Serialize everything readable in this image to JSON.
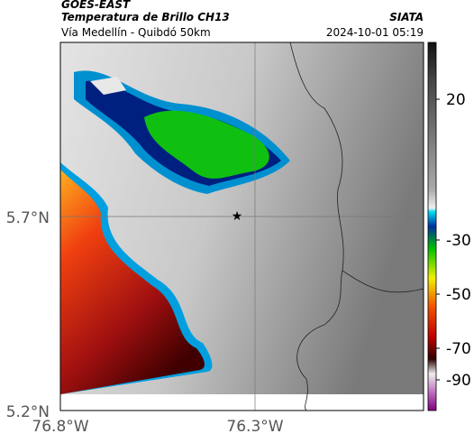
{
  "header": {
    "source": "GOES-EAST",
    "product": "Temperatura de Brillo CH13",
    "region": "Vía Medellín - Quibdó 50km",
    "agency": "SIATA",
    "timestamp": "2024-10-01 05:19"
  },
  "axes": {
    "lat_labels": [
      "5.7°N",
      "5.2°N"
    ],
    "lon_labels": [
      "76.8°W",
      "76.3°W"
    ]
  },
  "colorbar": {
    "ticks": [
      20,
      -30,
      -50,
      -70,
      -90
    ]
  }
}
